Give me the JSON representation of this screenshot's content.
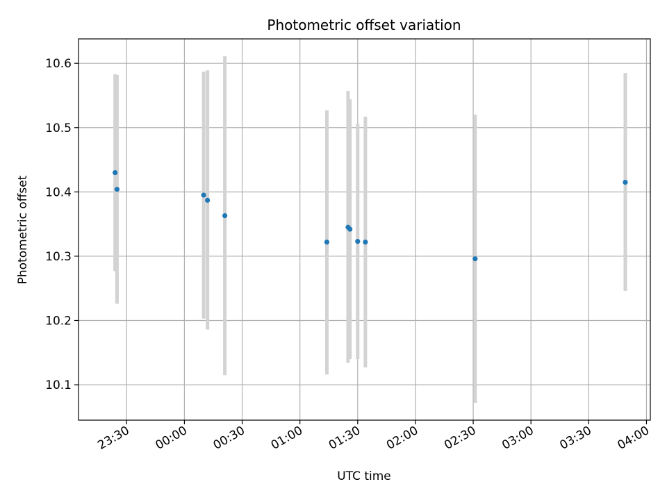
{
  "chart_data": {
    "type": "scatter",
    "title": "Photometric offset variation",
    "xlabel": "UTC time",
    "ylabel": "Photometric offset",
    "x_unit": "UTC",
    "xlim": [
      "23:05",
      "04:02"
    ],
    "ylim": [
      10.045,
      10.638
    ],
    "grid": true,
    "xticks": [
      "23:30",
      "00:00",
      "00:30",
      "01:00",
      "01:30",
      "02:00",
      "02:30",
      "03:00",
      "03:30",
      "04:00"
    ],
    "yticks": [
      10.1,
      10.2,
      10.3,
      10.4,
      10.5,
      10.6
    ],
    "ytick_labels": [
      "10.1",
      "10.2",
      "10.3",
      "10.4",
      "10.5",
      "10.6"
    ],
    "colors": {
      "point": "#1f77b4",
      "errorbar": "#d3d3d3",
      "grid": "#b0b0b0"
    },
    "points": [
      {
        "x": "23:24",
        "y": 10.43,
        "ylow": 10.277,
        "yhigh": 10.583
      },
      {
        "x": "23:25",
        "y": 10.404,
        "ylow": 10.226,
        "yhigh": 10.582
      },
      {
        "x": "00:10",
        "y": 10.395,
        "ylow": 10.203,
        "yhigh": 10.587
      },
      {
        "x": "00:12",
        "y": 10.387,
        "ylow": 10.186,
        "yhigh": 10.589
      },
      {
        "x": "00:21",
        "y": 10.363,
        "ylow": 10.115,
        "yhigh": 10.611
      },
      {
        "x": "01:14",
        "y": 10.322,
        "ylow": 10.116,
        "yhigh": 10.527
      },
      {
        "x": "01:25",
        "y": 10.345,
        "ylow": 10.134,
        "yhigh": 10.557
      },
      {
        "x": "01:26",
        "y": 10.342,
        "ylow": 10.14,
        "yhigh": 10.544
      },
      {
        "x": "01:30",
        "y": 10.323,
        "ylow": 10.14,
        "yhigh": 10.506
      },
      {
        "x": "01:34",
        "y": 10.322,
        "ylow": 10.127,
        "yhigh": 10.517
      },
      {
        "x": "02:31",
        "y": 10.296,
        "ylow": 10.072,
        "yhigh": 10.52
      },
      {
        "x": "03:49",
        "y": 10.415,
        "ylow": 10.246,
        "yhigh": 10.585
      }
    ]
  }
}
